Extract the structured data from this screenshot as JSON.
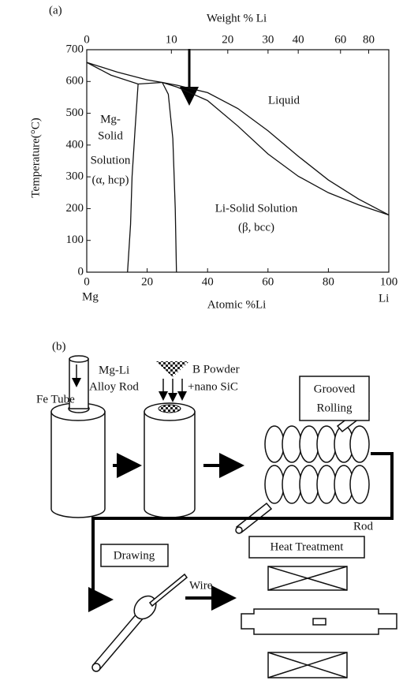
{
  "chart_data": {
    "type": "line",
    "panel_label": "(a)",
    "xlabel": "Atomic %Li",
    "ylabel": "Temperature(°C)",
    "x2label": "Weight % Li",
    "x_end_labels": [
      "Mg",
      "Li"
    ],
    "xlim": [
      0,
      100
    ],
    "xticks": [
      0,
      20,
      40,
      60,
      80,
      100
    ],
    "ylim": [
      0,
      700
    ],
    "yticks": [
      0,
      100,
      200,
      300,
      400,
      500,
      600,
      700
    ],
    "x2ticks": [
      0,
      10,
      20,
      30,
      40,
      60,
      80
    ],
    "color": "#111111",
    "series": [
      {
        "x": [
          0,
          10,
          20,
          25,
          30,
          40,
          50,
          60,
          70,
          80,
          90,
          100
        ],
        "values": [
          660,
          630,
          605,
          597,
          588,
          565,
          515,
          445,
          365,
          290,
          230,
          180
        ]
      },
      {
        "x": [
          25,
          30,
          40,
          50,
          60,
          70,
          80,
          90,
          100
        ],
        "values": [
          597,
          582,
          540,
          460,
          372,
          302,
          250,
          212,
          180
        ]
      },
      {
        "x": [
          0,
          8,
          17,
          25
        ],
        "values": [
          660,
          620,
          592,
          597
        ]
      },
      {
        "x": [
          17,
          16,
          15,
          14.5,
          13.5
        ],
        "values": [
          592,
          450,
          300,
          150,
          0
        ]
      },
      {
        "x": [
          25,
          27,
          28.5,
          29.3,
          29.7
        ],
        "values": [
          597,
          560,
          420,
          200,
          0
        ]
      }
    ],
    "region_labels": [
      "Liquid",
      "Mg-",
      "Solid",
      "Solution",
      "(α, hcp)",
      "Li-Solid Solution",
      "(β, bcc)"
    ]
  },
  "diagram": {
    "panel_label": "(b)",
    "labels": [
      "Mg-Li",
      "Alloy Rod",
      "Fe Tube",
      "B Powder",
      "+nano SiC",
      "Grooved",
      "Rolling",
      "Rod",
      "Drawing",
      "Wire",
      "Heat Treatment"
    ]
  }
}
